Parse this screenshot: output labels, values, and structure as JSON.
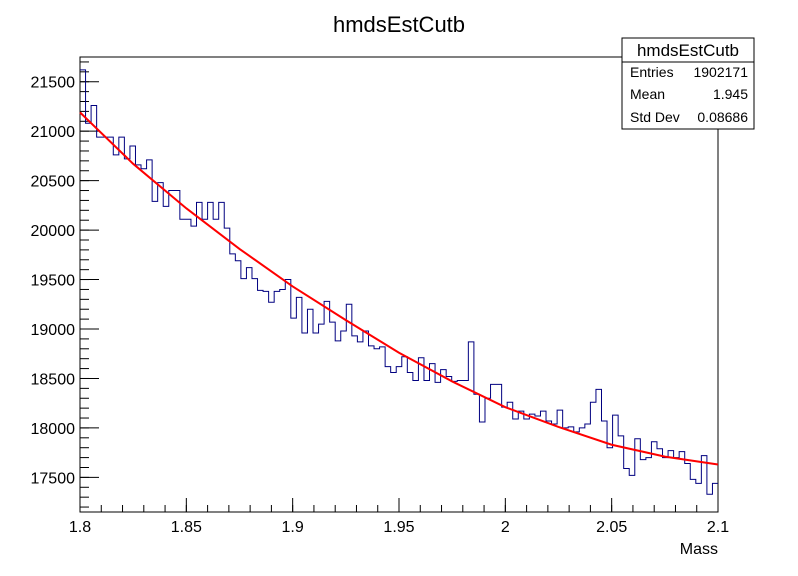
{
  "chart_data": {
    "type": "histogram",
    "title": "hmdsEstCutb",
    "xlabel": "Mass",
    "ylabel": "",
    "xlim": [
      1.8,
      2.1
    ],
    "ylim": [
      17150,
      21750
    ],
    "x_ticks": [
      1.8,
      1.85,
      1.9,
      1.95,
      2.0,
      2.05,
      2.1
    ],
    "x_tick_labels": [
      "1.8",
      "1.85",
      "1.9",
      "1.95",
      "2",
      "2.05",
      "2.1"
    ],
    "y_ticks": [
      17500,
      18000,
      18500,
      19000,
      19500,
      20000,
      20500,
      21000,
      21500
    ],
    "y_tick_labels": [
      "17500",
      "18000",
      "18500",
      "19000",
      "19500",
      "20000",
      "20500",
      "21000",
      "21500"
    ],
    "bin_width": 0.0025,
    "series": [
      {
        "kind": "histogram",
        "color": "#000080",
        "values": [
          21620,
          21080,
          21260,
          20940,
          20940,
          20940,
          20760,
          20940,
          20720,
          20850,
          20660,
          20620,
          20710,
          20290,
          20480,
          20240,
          20400,
          20400,
          20110,
          20110,
          20040,
          20280,
          20110,
          20280,
          20110,
          20280,
          20020,
          19760,
          19690,
          19510,
          19620,
          19510,
          19390,
          19380,
          19270,
          19380,
          19400,
          19500,
          19110,
          19320,
          18960,
          19200,
          18960,
          19050,
          19280,
          19070,
          18880,
          18980,
          19250,
          18930,
          18870,
          18980,
          18830,
          18800,
          18820,
          18620,
          18560,
          18620,
          18720,
          18560,
          18480,
          18710,
          18480,
          18650,
          18460,
          18590,
          18520,
          18470,
          18480,
          18480,
          18870,
          18340,
          18060,
          18300,
          18440,
          18440,
          18210,
          18260,
          18090,
          18170,
          18090,
          18140,
          18120,
          18170,
          18070,
          18040,
          18180,
          18000,
          18010,
          17960,
          18000,
          18040,
          18260,
          18390,
          18070,
          17800,
          18130,
          17920,
          17590,
          17520,
          17890,
          17680,
          17700,
          17860,
          17790,
          17700,
          17770,
          17700,
          17760,
          17640,
          17480,
          17440,
          17720,
          17330,
          17440
        ]
      },
      {
        "kind": "fit",
        "color": "#ff0000",
        "x": [
          1.8,
          1.825,
          1.85,
          1.875,
          1.9,
          1.925,
          1.95,
          1.975,
          2.0,
          2.025,
          2.05,
          2.075,
          2.1
        ],
        "values": [
          21190,
          20670,
          20220,
          19810,
          19430,
          19090,
          18760,
          18470,
          18210,
          18010,
          17830,
          17710,
          17630
        ]
      }
    ],
    "stats_box": {
      "title": "hmdsEstCutb",
      "rows": [
        {
          "label": "Entries",
          "value": "1902171"
        },
        {
          "label": "Mean",
          "value": "1.945"
        },
        {
          "label": "Std Dev",
          "value": "0.08686"
        }
      ]
    }
  }
}
